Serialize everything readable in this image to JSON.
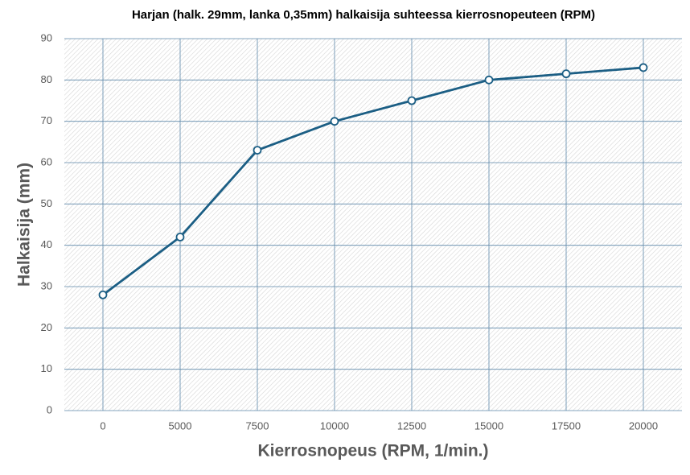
{
  "chart_data": {
    "type": "line",
    "title": "Harjan (halk. 29mm, lanka 0,35mm) halkaisija suhteessa kierrosnopeuteen (RPM)",
    "x_label": "Kierrosnopeus (RPM, 1/min.)",
    "y_label": "Halkaisija (mm)",
    "categories": [
      "0",
      "5000",
      "7500",
      "10000",
      "12500",
      "15000",
      "17500",
      "20000"
    ],
    "series": [
      {
        "name": "Halkaisija (mm)",
        "color": "#1b5e84",
        "values": [
          28,
          42,
          63,
          70,
          75,
          80,
          81.5,
          83
        ]
      }
    ],
    "ylim": [
      0,
      90
    ],
    "yticks": [
      0,
      10,
      20,
      30,
      40,
      50,
      60,
      70,
      80,
      90
    ],
    "grid": true
  }
}
